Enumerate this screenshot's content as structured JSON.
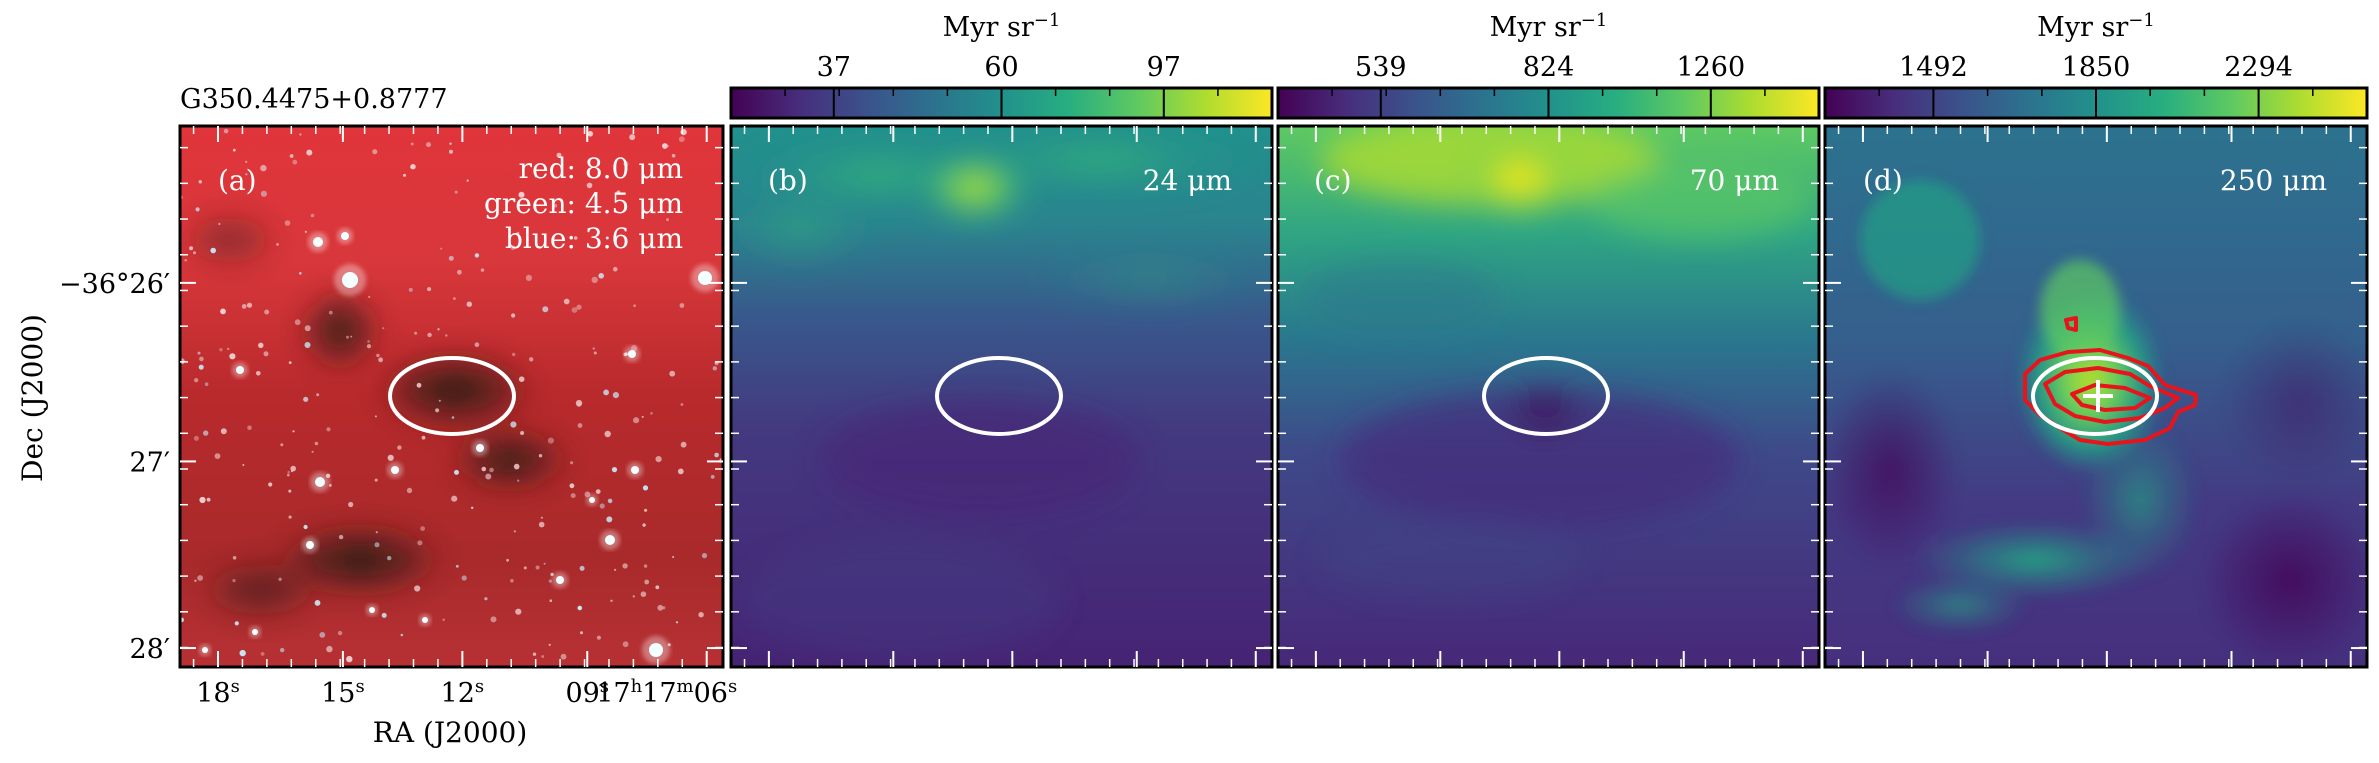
{
  "source_name": "G350.4475+0.8777",
  "axes": {
    "xlabel": "RA (J2000)",
    "ylabel": "Dec (J2000)",
    "x_ticks": [
      {
        "main": "18",
        "sup": "s",
        "frac": 0.07
      },
      {
        "main": "15",
        "sup": "s",
        "frac": 0.3
      },
      {
        "main": "12",
        "sup": "s",
        "frac": 0.52
      },
      {
        "main": "09",
        "sup": "s",
        "frac": 0.75
      },
      {
        "main": "17",
        "sup": "h",
        "main2": "17",
        "sup2": "m",
        "main3": "06",
        "sup3": "s",
        "frac": 0.97
      }
    ],
    "y_ticks": [
      {
        "label": "−36°26′",
        "frac": 0.29
      },
      {
        "label": "27′",
        "frac": 0.62
      },
      {
        "label": "28′",
        "frac": 0.965
      }
    ]
  },
  "panels": [
    {
      "id": "a",
      "label": "(a)",
      "legend": [
        "red: 8.0 μm",
        "green: 4.5 μm",
        "blue: 3.6 μm"
      ],
      "kind": "rgb"
    },
    {
      "id": "b",
      "label": "(b)",
      "band": "24 μm",
      "kind": "viridis",
      "colorbar": {
        "unit": "Myr sr",
        "unit_sup": "−1",
        "ticks": [
          {
            "v": "37",
            "f": 0.19
          },
          {
            "v": "60",
            "f": 0.5
          },
          {
            "v": "97",
            "f": 0.8
          }
        ]
      }
    },
    {
      "id": "c",
      "label": "(c)",
      "band": "70 μm",
      "kind": "viridis",
      "colorbar": {
        "unit": "Myr sr",
        "unit_sup": "−1",
        "ticks": [
          {
            "v": "539",
            "f": 0.19
          },
          {
            "v": "824",
            "f": 0.5
          },
          {
            "v": "1260",
            "f": 0.8
          }
        ]
      }
    },
    {
      "id": "d",
      "label": "(d)",
      "band": "250 μm",
      "kind": "viridis",
      "colorbar": {
        "unit": "Myr sr",
        "unit_sup": "−1",
        "ticks": [
          {
            "v": "1492",
            "f": 0.2
          },
          {
            "v": "1850",
            "f": 0.5
          },
          {
            "v": "2294",
            "f": 0.8
          }
        ]
      }
    }
  ],
  "colors": {
    "viridis": [
      "#440154",
      "#472d7b",
      "#3b528b",
      "#2c728e",
      "#21918c",
      "#28ae80",
      "#5ec962",
      "#addc30",
      "#fde725"
    ],
    "rgb_background": "#c8262a",
    "aperture": "#ffffff",
    "contour": "#e8141c"
  }
}
